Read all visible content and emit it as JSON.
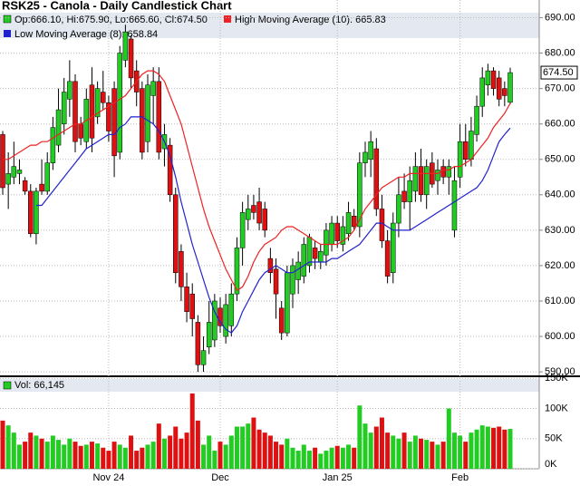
{
  "chart_data": {
    "type": "candlestick",
    "title": "RSK25 - Canola - Daily Candlestick Chart",
    "ohlc_label": "Op:666.10, Hi:675.90, Lo:665.60, Cl:674.50",
    "categories": [
      null,
      null,
      null,
      null,
      null,
      null,
      null,
      null,
      null,
      null,
      null,
      null,
      null,
      null,
      null,
      null,
      null,
      null,
      null,
      "Nov 24",
      null,
      null,
      null,
      null,
      null,
      null,
      null,
      null,
      null,
      null,
      null,
      null,
      null,
      null,
      null,
      null,
      null,
      null,
      null,
      "Dec",
      null,
      null,
      null,
      null,
      null,
      null,
      null,
      null,
      null,
      null,
      null,
      null,
      null,
      null,
      null,
      null,
      null,
      null,
      null,
      null,
      "Jan 25",
      null,
      null,
      null,
      null,
      null,
      null,
      null,
      null,
      null,
      null,
      null,
      null,
      null,
      null,
      null,
      null,
      null,
      null,
      null,
      null,
      null,
      "Feb",
      null,
      null,
      null,
      null,
      null,
      null,
      null,
      null,
      null
    ],
    "open": [
      657,
      643,
      645,
      646,
      644,
      641,
      629,
      643,
      641,
      649,
      654,
      660,
      667,
      672,
      660,
      655,
      671,
      662,
      669,
      666,
      670,
      652,
      678,
      684,
      675,
      670,
      655,
      668,
      672,
      653,
      654,
      640,
      624,
      614,
      612,
      604,
      592,
      597,
      599,
      608,
      600,
      603,
      612,
      625,
      633,
      637,
      638,
      636,
      622,
      619,
      608,
      601,
      612,
      616,
      617,
      620,
      625,
      621,
      623,
      626,
      632,
      626,
      629,
      634,
      631,
      649,
      650,
      653,
      636,
      627,
      618,
      632,
      641,
      638,
      641,
      648,
      640,
      649,
      644,
      648,
      645,
      630,
      645,
      655,
      650,
      657,
      665,
      671,
      675,
      673,
      670,
      666.1
    ],
    "high": [
      658,
      652,
      655,
      650,
      645,
      643,
      642,
      650,
      652,
      662,
      670,
      673,
      678,
      674,
      662,
      670,
      676,
      672,
      675,
      668,
      672,
      682,
      688,
      685,
      678,
      672,
      674,
      676,
      676,
      660,
      656,
      642,
      626,
      618,
      615,
      606,
      600,
      610,
      612,
      611,
      612,
      615,
      628,
      638,
      640,
      640,
      642,
      638,
      625,
      622,
      610,
      620,
      622,
      624,
      628,
      629,
      627,
      626,
      632,
      634,
      634,
      634,
      638,
      636,
      652,
      655,
      658,
      656,
      640,
      630,
      635,
      645,
      646,
      648,
      652,
      653,
      650,
      652,
      650,
      650,
      650,
      648,
      660,
      660,
      662,
      668,
      676,
      677,
      676,
      675,
      672,
      675.9
    ],
    "low": [
      640,
      636,
      643,
      643,
      640,
      628,
      626,
      640,
      640,
      647,
      652,
      657,
      662,
      652,
      654,
      653,
      652,
      660,
      664,
      655,
      645,
      650,
      676,
      670,
      665,
      650,
      652,
      660,
      650,
      648,
      638,
      615,
      610,
      604,
      600,
      590,
      590,
      595,
      597,
      601,
      598,
      600,
      610,
      620,
      630,
      633,
      630,
      628,
      615,
      605,
      599,
      600,
      608,
      612,
      615,
      618,
      619,
      619,
      620,
      624,
      625,
      624,
      627,
      630,
      628,
      645,
      645,
      634,
      625,
      615,
      615,
      628,
      636,
      630,
      638,
      638,
      636,
      642,
      640,
      643,
      640,
      628,
      642,
      648,
      648,
      655,
      662,
      668,
      668,
      665,
      665,
      665.6
    ],
    "close": [
      642,
      646,
      648,
      647,
      641,
      629,
      641,
      641,
      649,
      659,
      664,
      669,
      672,
      655,
      656,
      667,
      656,
      670,
      666,
      658,
      651,
      680,
      686,
      673,
      669,
      652,
      671,
      672,
      652,
      657,
      640,
      618,
      614,
      607,
      605,
      592,
      596,
      604,
      610,
      603,
      609,
      612,
      625,
      635,
      636,
      635,
      632,
      630,
      618,
      612,
      601,
      618,
      620,
      621,
      626,
      628,
      622,
      624,
      630,
      632,
      627,
      631,
      635,
      631,
      649,
      652,
      655,
      636,
      627,
      617,
      632,
      640,
      638,
      644,
      648,
      640,
      648,
      643,
      647,
      645,
      648,
      644,
      655,
      650,
      658,
      665,
      673,
      675,
      670,
      667,
      668,
      674.5
    ],
    "up_color": "#22cc22",
    "down_color": "#dd1111",
    "last_label": "674.50",
    "ylim": [
      589,
      695
    ],
    "yticks": [
      {
        "value": 590,
        "label": "590.00"
      },
      {
        "value": 600,
        "label": "600.00"
      },
      {
        "value": 610,
        "label": "610.00"
      },
      {
        "value": 620,
        "label": "620.00"
      },
      {
        "value": 630,
        "label": "630.00"
      },
      {
        "value": 640,
        "label": "640.00"
      },
      {
        "value": 650,
        "label": "650.00"
      },
      {
        "value": 660,
        "label": "660.00"
      },
      {
        "value": 670,
        "label": "670.00"
      },
      {
        "value": 680,
        "label": "680.00"
      },
      {
        "value": 690,
        "label": "690.00"
      }
    ],
    "grid": true,
    "series": [
      {
        "name": "High Moving Average (10): 665.83",
        "color": "#ee2222",
        "values": [
          650,
          650,
          651,
          652,
          653,
          654,
          654,
          655,
          655,
          656,
          657,
          658,
          659,
          660,
          660,
          661,
          662,
          663,
          664,
          665,
          666,
          667,
          668,
          670,
          672,
          674,
          675,
          675,
          674,
          672,
          668,
          664,
          660,
          654,
          648,
          642,
          636,
          631,
          627,
          623,
          619,
          616,
          613,
          614,
          617,
          621,
          624,
          626,
          627,
          628,
          630,
          631,
          631,
          630,
          629,
          628,
          627,
          626,
          626,
          626,
          626,
          627,
          628,
          630,
          633,
          636,
          638,
          640,
          642,
          643,
          644,
          645,
          645,
          646,
          646,
          646,
          646,
          646,
          646,
          647,
          647,
          648,
          648,
          649,
          650,
          652,
          654,
          656,
          659,
          661,
          663,
          665.83
        ]
      },
      {
        "name": "Low Moving Average (8): 658.84",
        "color": "#2222cc",
        "values": [
          null,
          null,
          null,
          null,
          null,
          null,
          637,
          637,
          639,
          641,
          643,
          645,
          647,
          649,
          651,
          653,
          654,
          655,
          656,
          657,
          657,
          659,
          660,
          662,
          662,
          662,
          661,
          660,
          658,
          655,
          651,
          645,
          638,
          632,
          626,
          621,
          616,
          611,
          607,
          604,
          602,
          601,
          603,
          607,
          610,
          613,
          616,
          618,
          619,
          620,
          619,
          618,
          618,
          619,
          620,
          621,
          621,
          621,
          621,
          622,
          622,
          623,
          624,
          625,
          626,
          628,
          630,
          632,
          632,
          631,
          630,
          630,
          630,
          630,
          631,
          632,
          633,
          634,
          635,
          636,
          637,
          638,
          639,
          640,
          641,
          642,
          644,
          647,
          651,
          655,
          657,
          658.84
        ]
      }
    ],
    "volume": {
      "label": "Vol: 66,145",
      "values": [
        80000,
        72000,
        60000,
        40000,
        45000,
        60000,
        55000,
        50000,
        45000,
        55000,
        48000,
        40000,
        50000,
        45000,
        38000,
        40000,
        45000,
        42000,
        35000,
        30000,
        45000,
        40000,
        35000,
        55000,
        30000,
        35000,
        40000,
        45000,
        75000,
        50000,
        55000,
        70000,
        50000,
        60000,
        125000,
        80000,
        40000,
        55000,
        30000,
        45000,
        40000,
        55000,
        70000,
        70000,
        75000,
        85000,
        65000,
        60000,
        55000,
        45000,
        40000,
        50000,
        35000,
        30000,
        40000,
        30000,
        35000,
        25000,
        30000,
        35000,
        38000,
        35000,
        40000,
        35000,
        105000,
        75000,
        60000,
        70000,
        85000,
        60000,
        55000,
        50000,
        60000,
        45000,
        55000,
        50000,
        48000,
        45000,
        40000,
        45000,
        100000,
        60000,
        55000,
        45000,
        60000,
        65000,
        72000,
        70000,
        68000,
        70000,
        65000,
        66145
      ],
      "ylim": [
        0,
        152000
      ],
      "yticks": [
        {
          "value": 0,
          "label": "0K"
        },
        {
          "value": 50000,
          "label": "50K"
        },
        {
          "value": 100000,
          "label": "100K"
        },
        {
          "value": 150000,
          "label": "150K"
        }
      ]
    }
  }
}
